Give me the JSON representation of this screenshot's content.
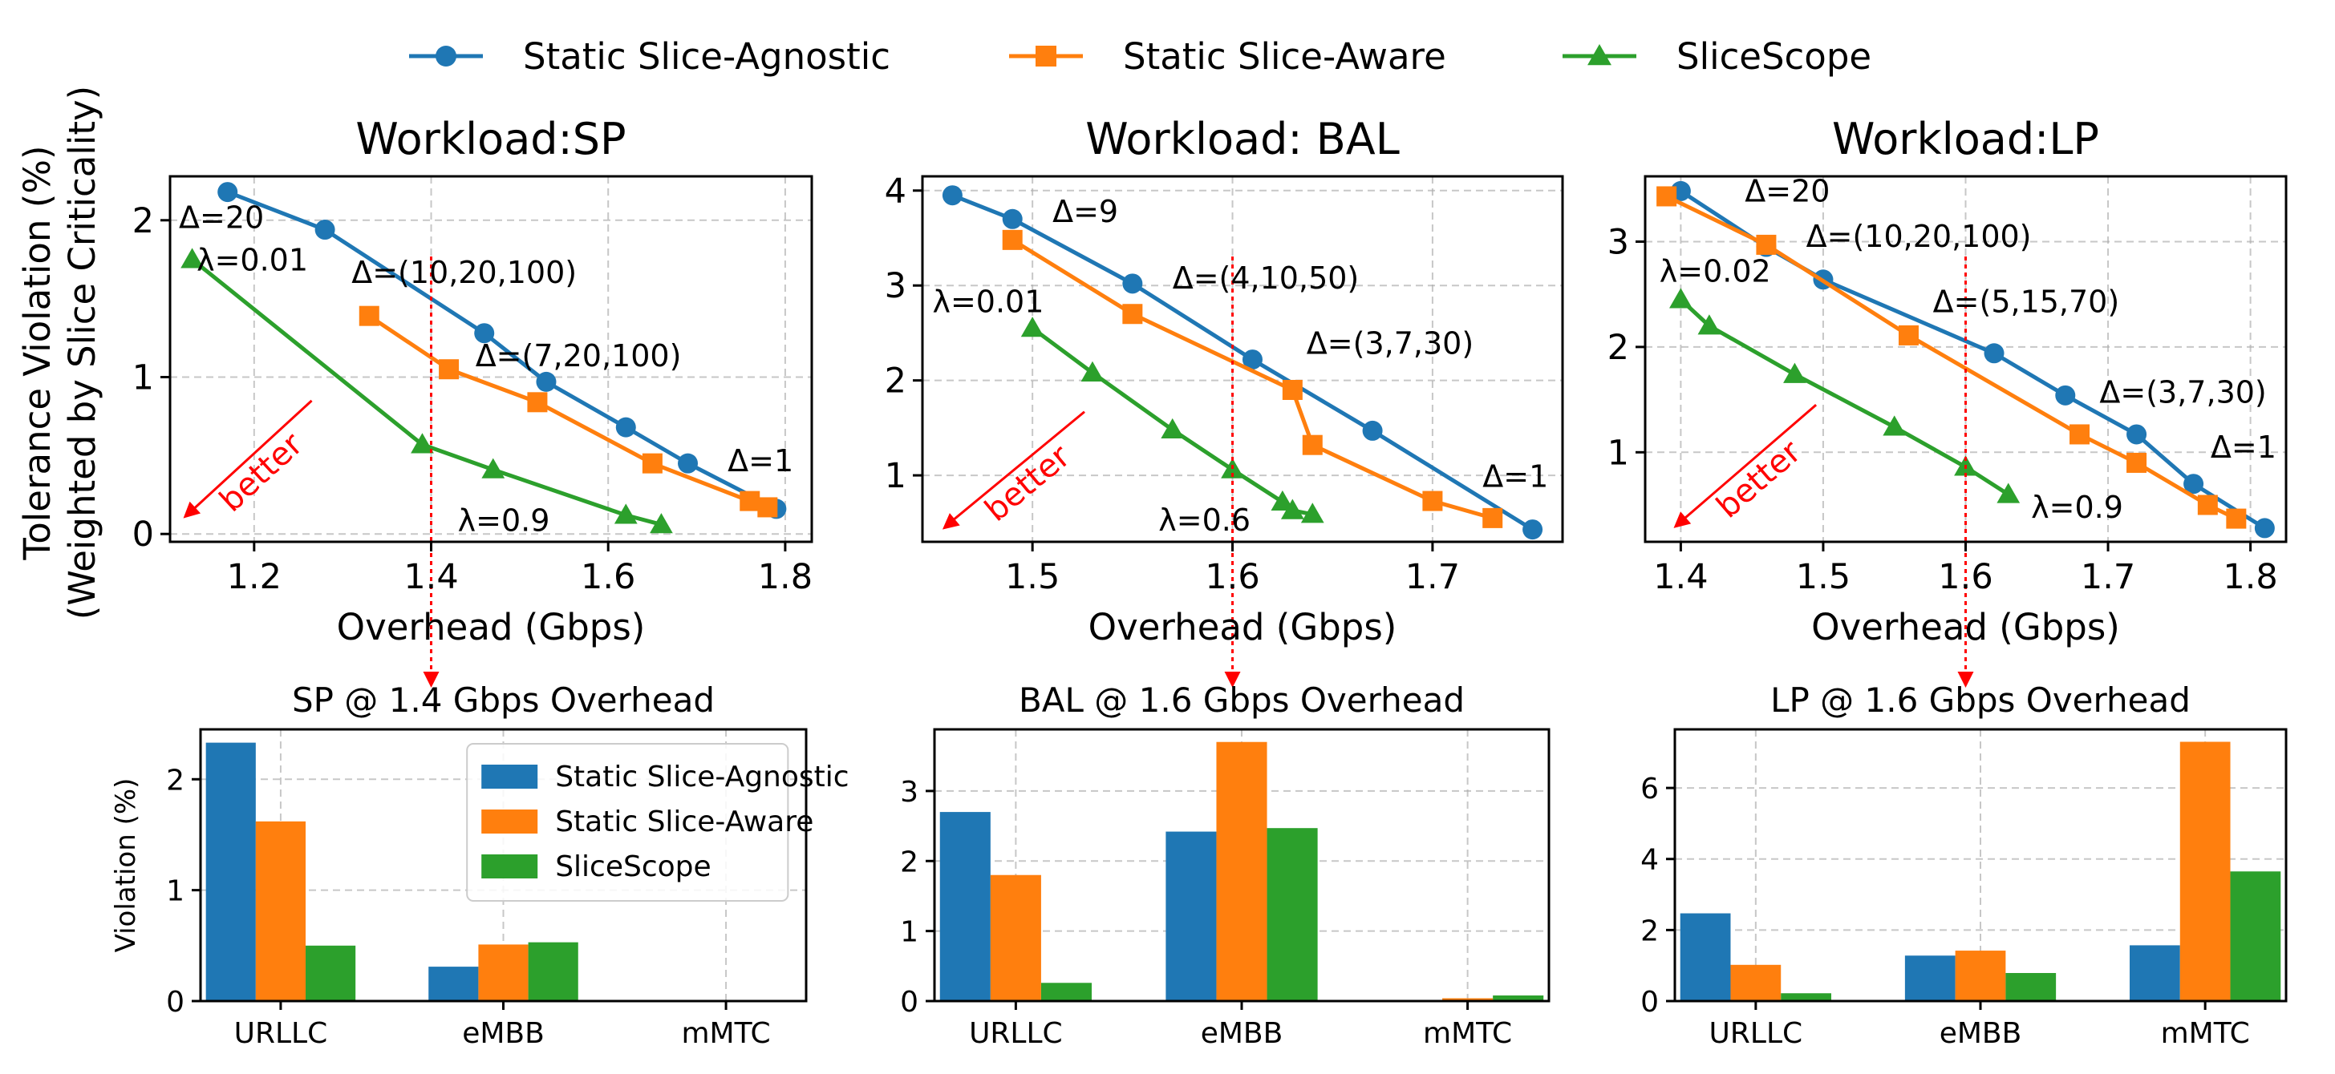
{
  "figure": {
    "shared_ylabel_line1": "Tolerance Violation (%)",
    "shared_ylabel_line2": "(Weighted by Slice Criticality)",
    "colors": {
      "Static Slice-Agnostic": "#1f77b4",
      "Static Slice-Aware": "#ff7f0e",
      "SliceScope": "#2ca02c",
      "guide": "#ff0000"
    },
    "legend": [
      {
        "name": "Static Slice-Agnostic",
        "marker": "circle"
      },
      {
        "name": "Static Slice-Aware",
        "marker": "square"
      },
      {
        "name": "SliceScope",
        "marker": "triangle"
      }
    ],
    "better_label": "better"
  },
  "chart_data": [
    {
      "type": "line",
      "title": "Workload:SP",
      "xlabel": "Overhead (Gbps)",
      "ylabel": "",
      "xlim": [
        1.105,
        1.83
      ],
      "ylim": [
        -0.05,
        2.28
      ],
      "xticks": [
        1.2,
        1.4,
        1.6,
        1.8
      ],
      "yticks": [
        0,
        1,
        2
      ],
      "grid": true,
      "guide_x": 1.4,
      "series": [
        {
          "name": "Static Slice-Agnostic",
          "x": [
            1.17,
            1.28,
            1.46,
            1.53,
            1.62,
            1.69,
            1.79
          ],
          "y": [
            2.18,
            1.94,
            1.28,
            0.97,
            0.68,
            0.45,
            0.16
          ]
        },
        {
          "name": "Static Slice-Aware",
          "x": [
            1.33,
            1.42,
            1.52,
            1.65,
            1.76,
            1.78
          ],
          "y": [
            1.39,
            1.05,
            0.84,
            0.45,
            0.21,
            0.17
          ]
        },
        {
          "name": "SliceScope",
          "x": [
            1.13,
            1.39,
            1.47,
            1.62,
            1.66
          ],
          "y": [
            1.75,
            0.57,
            0.41,
            0.12,
            0.06
          ]
        }
      ],
      "annotations": [
        {
          "text": "Δ=20",
          "x": 1.115,
          "y": 1.95
        },
        {
          "text": "λ=0.01",
          "x": 1.135,
          "y": 1.68
        },
        {
          "text": "Δ=(10,20,100)",
          "x": 1.31,
          "y": 1.6
        },
        {
          "text": "Δ=(7,20,100)",
          "x": 1.45,
          "y": 1.07
        },
        {
          "text": "Δ=1",
          "x": 1.735,
          "y": 0.4
        },
        {
          "text": "λ=0.9",
          "x": 1.43,
          "y": 0.02
        }
      ],
      "better_arrow": {
        "from": [
          1.265,
          0.85
        ],
        "to": [
          1.12,
          0.1
        ]
      }
    },
    {
      "type": "line",
      "title": "Workload: BAL",
      "xlabel": "Overhead (Gbps)",
      "ylabel": "",
      "xlim": [
        1.445,
        1.765
      ],
      "ylim": [
        0.3,
        4.15
      ],
      "xticks": [
        1.5,
        1.6,
        1.7
      ],
      "yticks": [
        1,
        2,
        3,
        4
      ],
      "grid": true,
      "guide_x": 1.6,
      "series": [
        {
          "name": "Static Slice-Agnostic",
          "x": [
            1.46,
            1.49,
            1.55,
            1.61,
            1.67,
            1.75
          ],
          "y": [
            3.95,
            3.7,
            3.02,
            2.22,
            1.47,
            0.43
          ]
        },
        {
          "name": "Static Slice-Aware",
          "x": [
            1.49,
            1.55,
            1.63,
            1.64,
            1.7,
            1.73
          ],
          "y": [
            3.48,
            2.7,
            1.9,
            1.32,
            0.73,
            0.55
          ]
        },
        {
          "name": "SliceScope",
          "x": [
            1.5,
            1.53,
            1.57,
            1.6,
            1.625,
            1.63,
            1.64
          ],
          "y": [
            2.55,
            2.08,
            1.48,
            1.06,
            0.72,
            0.63,
            0.59
          ]
        }
      ],
      "annotations": [
        {
          "text": "Δ=9",
          "x": 1.51,
          "y": 3.67
        },
        {
          "text": "Δ=(4,10,50)",
          "x": 1.57,
          "y": 2.97
        },
        {
          "text": "Δ=(3,7,30)",
          "x": 1.637,
          "y": 2.28
        },
        {
          "text": "Δ=1",
          "x": 1.725,
          "y": 0.88
        },
        {
          "text": "λ=0.01",
          "x": 1.45,
          "y": 2.72
        },
        {
          "text": "λ=0.6",
          "x": 1.563,
          "y": 0.42
        }
      ],
      "better_arrow": {
        "from": [
          1.526,
          1.67
        ],
        "to": [
          1.455,
          0.43
        ]
      }
    },
    {
      "type": "line",
      "title": "Workload:LP",
      "xlabel": "Overhead (Gbps)",
      "ylabel": "",
      "xlim": [
        1.375,
        1.825
      ],
      "ylim": [
        0.15,
        3.62
      ],
      "xticks": [
        1.4,
        1.5,
        1.6,
        1.7,
        1.8
      ],
      "yticks": [
        1,
        2,
        3
      ],
      "grid": true,
      "guide_x": 1.6,
      "series": [
        {
          "name": "Static Slice-Agnostic",
          "x": [
            1.4,
            1.46,
            1.5,
            1.62,
            1.67,
            1.72,
            1.76,
            1.81
          ],
          "y": [
            3.48,
            2.95,
            2.64,
            1.94,
            1.54,
            1.17,
            0.7,
            0.28
          ]
        },
        {
          "name": "Static Slice-Aware",
          "x": [
            1.39,
            1.46,
            1.56,
            1.68,
            1.72,
            1.77,
            1.79
          ],
          "y": [
            3.43,
            2.97,
            2.11,
            1.17,
            0.9,
            0.5,
            0.37
          ]
        },
        {
          "name": "SliceScope",
          "x": [
            1.4,
            1.42,
            1.48,
            1.55,
            1.6,
            1.63
          ],
          "y": [
            2.45,
            2.2,
            1.74,
            1.24,
            0.86,
            0.6
          ]
        }
      ],
      "annotations": [
        {
          "text": "Δ=20",
          "x": 1.445,
          "y": 3.38
        },
        {
          "text": "Δ=(10,20,100)",
          "x": 1.488,
          "y": 2.95
        },
        {
          "text": "Δ=(5,15,70)",
          "x": 1.577,
          "y": 2.33
        },
        {
          "text": "Δ=(3,7,30)",
          "x": 1.694,
          "y": 1.47
        },
        {
          "text": "Δ=1",
          "x": 1.772,
          "y": 0.95
        },
        {
          "text": "λ=0.02",
          "x": 1.385,
          "y": 2.62
        },
        {
          "text": "λ=0.9",
          "x": 1.646,
          "y": 0.38
        }
      ],
      "better_arrow": {
        "from": [
          1.495,
          1.45
        ],
        "to": [
          1.395,
          0.28
        ]
      }
    },
    {
      "type": "bar",
      "title": "SP @ 1.4 Gbps Overhead",
      "xlabel": "",
      "ylabel": "Violation (%)",
      "categories": [
        "URLLC",
        "eMBB",
        "mMTC"
      ],
      "ylim": [
        0,
        2.45
      ],
      "yticks": [
        0,
        1,
        2
      ],
      "grid": true,
      "legend": "upper right",
      "series": [
        {
          "name": "Static Slice-Agnostic",
          "values": [
            2.33,
            0.31,
            0.0
          ]
        },
        {
          "name": "Static Slice-Aware",
          "values": [
            1.62,
            0.51,
            0.0
          ]
        },
        {
          "name": "SliceScope",
          "values": [
            0.5,
            0.53,
            0.0
          ]
        }
      ]
    },
    {
      "type": "bar",
      "title": "BAL @ 1.6 Gbps Overhead",
      "xlabel": "",
      "ylabel": "",
      "categories": [
        "URLLC",
        "eMBB",
        "mMTC"
      ],
      "ylim": [
        0,
        3.88
      ],
      "yticks": [
        0,
        1,
        2,
        3
      ],
      "grid": true,
      "series": [
        {
          "name": "Static Slice-Agnostic",
          "values": [
            2.7,
            2.42,
            0.0
          ]
        },
        {
          "name": "Static Slice-Aware",
          "values": [
            1.8,
            3.7,
            0.04
          ]
        },
        {
          "name": "SliceScope",
          "values": [
            0.26,
            2.47,
            0.08
          ]
        }
      ]
    },
    {
      "type": "bar",
      "title": "LP @ 1.6 Gbps Overhead",
      "xlabel": "",
      "ylabel": "",
      "categories": [
        "URLLC",
        "eMBB",
        "mMTC"
      ],
      "ylim": [
        0,
        7.65
      ],
      "yticks": [
        0,
        2,
        4,
        6
      ],
      "grid": true,
      "series": [
        {
          "name": "Static Slice-Agnostic",
          "values": [
            2.47,
            1.28,
            1.57
          ]
        },
        {
          "name": "Static Slice-Aware",
          "values": [
            1.02,
            1.42,
            7.3
          ]
        },
        {
          "name": "SliceScope",
          "values": [
            0.22,
            0.79,
            3.65
          ]
        }
      ]
    }
  ]
}
